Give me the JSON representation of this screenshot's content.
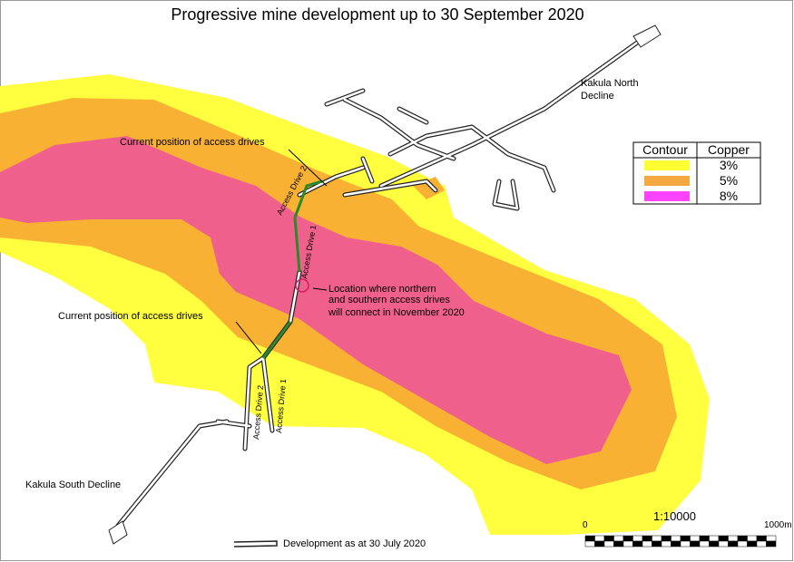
{
  "title": "Progressive mine development up to 30 September 2020",
  "places": {
    "north_decline": [
      "Kakula North",
      "Decline"
    ],
    "south_decline": "Kakula South Decline"
  },
  "legend": {
    "headers": [
      "Contour",
      "Copper"
    ],
    "rows": [
      {
        "label": "3%",
        "color": "#ffff33"
      },
      {
        "label": "5%",
        "color": "#f7a941"
      },
      {
        "label": "8%",
        "color": "#ff44ff"
      }
    ]
  },
  "annotations": {
    "north_position": "Current position of access drives",
    "south_position": "Current position of access drives",
    "north_drive_2": "Access Drive 2",
    "north_drive_1": "Access Drive 1",
    "south_drive_2": "Access Drive 2",
    "south_drive_1": "Access Drive 1",
    "connection": [
      "Location where northern",
      "and southern access drives",
      "will connect in November 2020"
    ]
  },
  "contours": {
    "outer": "#ffff40",
    "middle": "#f8b132",
    "inner": "#f0608c"
  },
  "scale": {
    "ratio": "1:10000",
    "start": "0",
    "end": "1000m"
  },
  "development_legend": "Development as at 30 July 2020"
}
